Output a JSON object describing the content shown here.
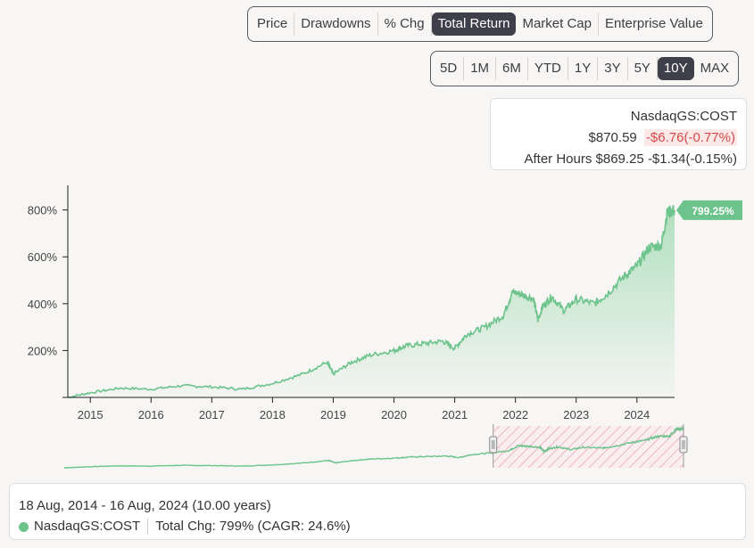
{
  "metric_tabs": [
    {
      "label": "Price",
      "active": false
    },
    {
      "label": "Drawdowns",
      "active": false
    },
    {
      "label": "% Chg",
      "active": false
    },
    {
      "label": "Total Return",
      "active": true
    },
    {
      "label": "Market Cap",
      "active": false
    },
    {
      "label": "Enterprise Value",
      "active": false
    }
  ],
  "range_tabs": [
    {
      "label": "5D",
      "active": false
    },
    {
      "label": "1M",
      "active": false
    },
    {
      "label": "6M",
      "active": false
    },
    {
      "label": "YTD",
      "active": false
    },
    {
      "label": "1Y",
      "active": false
    },
    {
      "label": "3Y",
      "active": false
    },
    {
      "label": "5Y",
      "active": false
    },
    {
      "label": "10Y",
      "active": true
    },
    {
      "label": "MAX",
      "active": false
    }
  ],
  "quote": {
    "ticker": "NasdaqGS:COST",
    "price": "$870.59",
    "change": "-$6.76(-0.77%)",
    "after_hours_label": "After Hours",
    "after_hours_price": "$869.25",
    "after_hours_change": "-$1.34(-0.15%)"
  },
  "summary": {
    "date_range": "18 Aug, 2014 - 16 Aug, 2024 (10.00 years)",
    "ticker": "NasdaqGS:COST",
    "total_change": "Total Chg: 799% (CAGR: 24.6%)"
  },
  "colors": {
    "line": "#6cc38b",
    "fill_top": "#a8dcb8",
    "badge": "#6cc38b",
    "negative": "#d44a4a",
    "active_tab": "#3f3f4b"
  },
  "chart_data": {
    "type": "area",
    "series": [
      {
        "x": [
          2014.63,
          2015.0,
          2015.5,
          2016.0,
          2016.5,
          2017.0,
          2017.5,
          2018.0,
          2018.5,
          2018.9,
          2019.0,
          2019.3,
          2019.6,
          2020.0,
          2020.2,
          2020.5,
          2020.8,
          2021.0,
          2021.2,
          2021.5,
          2021.8,
          2021.95,
          2022.1,
          2022.3,
          2022.37,
          2022.45,
          2022.6,
          2022.8,
          2023.0,
          2023.3,
          2023.5,
          2023.8,
          2024.0,
          2024.2,
          2024.4,
          2024.5,
          2024.62
        ],
        "y": [
          0,
          20,
          40,
          35,
          50,
          45,
          35,
          60,
          100,
          150,
          100,
          150,
          180,
          200,
          220,
          230,
          240,
          210,
          270,
          300,
          350,
          450,
          440,
          420,
          330,
          390,
          430,
          370,
          420,
          400,
          440,
          520,
          560,
          640,
          650,
          790,
          799.25
        ]
      }
    ],
    "xticks": [
      "2015",
      "2016",
      "2017",
      "2018",
      "2019",
      "2020",
      "2021",
      "2022",
      "2023",
      "2024"
    ],
    "yticks": [
      "800%",
      "600%",
      "400%",
      "200%",
      ""
    ],
    "xlim": [
      2014.63,
      2024.62
    ],
    "ylim": [
      0,
      890
    ],
    "last_value_label": "799.25%",
    "grid": false
  }
}
